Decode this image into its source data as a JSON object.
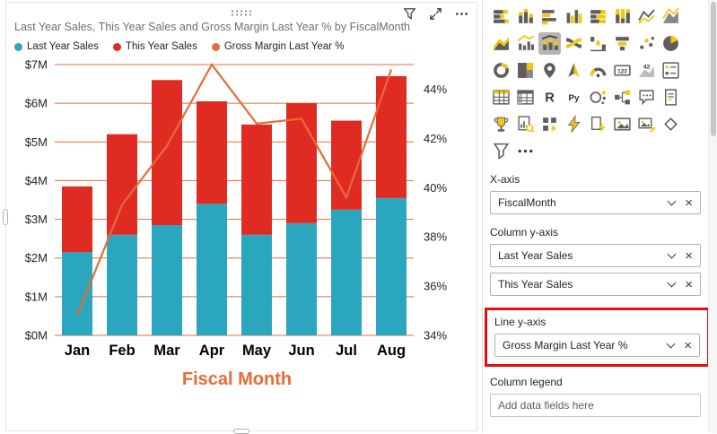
{
  "visual": {
    "title": "Last Year Sales, This Year Sales and Gross Margin Last Year % by FiscalMonth",
    "legend": [
      {
        "label": "Last Year Sales",
        "color": "#2BA6BF"
      },
      {
        "label": "This Year Sales",
        "color": "#E02B23"
      },
      {
        "label": "Gross Margin Last Year %",
        "color": "#E66C37"
      }
    ]
  },
  "chart_data": {
    "type": "combo",
    "subtype": "line and stacked column",
    "title": "Last Year Sales, This Year Sales and Gross Margin Last Year % by FiscalMonth",
    "x_axis_title": "Fiscal Month",
    "categories": [
      "Jan",
      "Feb",
      "Mar",
      "Apr",
      "May",
      "Jun",
      "Jul",
      "Aug"
    ],
    "series": [
      {
        "name": "Last Year Sales",
        "role": "column",
        "color": "#2BA6BF",
        "values_musd": [
          2.15,
          2.6,
          2.85,
          3.4,
          2.6,
          2.9,
          3.25,
          3.55
        ]
      },
      {
        "name": "This Year Sales",
        "role": "column",
        "color": "#E02B23",
        "values_musd": [
          1.7,
          2.6,
          3.75,
          2.65,
          2.85,
          3.1,
          2.3,
          3.15
        ]
      },
      {
        "name": "Gross Margin Last Year %",
        "role": "line",
        "color": "#E66C37",
        "values_pct": [
          34.8,
          39.3,
          41.7,
          45.0,
          42.6,
          42.8,
          39.6,
          44.8
        ]
      }
    ],
    "column_totals_musd": [
      3.85,
      5.2,
      6.6,
      6.05,
      5.45,
      6.0,
      5.55,
      6.7
    ],
    "left_axis": {
      "min": 0,
      "max": 7,
      "tick_labels": [
        "$0M",
        "$1M",
        "$2M",
        "$3M",
        "$4M",
        "$5M",
        "$6M",
        "$7M"
      ]
    },
    "right_axis": {
      "min": 34,
      "max": 45,
      "tick_values": [
        34,
        36,
        38,
        40,
        42,
        44
      ],
      "tick_labels": [
        "34%",
        "36%",
        "38%",
        "40%",
        "42%",
        "44%"
      ]
    },
    "gridlines": true,
    "gridline_color": "#E66C37",
    "legend_position": "top-left"
  },
  "viz_pane": {
    "icons": [
      {
        "name": "stacked-bar-chart",
        "kind": "hbars_stacked"
      },
      {
        "name": "stacked-column-chart",
        "kind": "vbars_stacked"
      },
      {
        "name": "clustered-bar-chart",
        "kind": "hbars"
      },
      {
        "name": "clustered-column-chart",
        "kind": "vbars"
      },
      {
        "name": "100-stacked-bar-chart",
        "kind": "hbars_full"
      },
      {
        "name": "100-stacked-column-chart",
        "kind": "vbars_full"
      },
      {
        "name": "line-chart",
        "kind": "line"
      },
      {
        "name": "area-chart",
        "kind": "area"
      },
      {
        "name": "stacked-area-chart",
        "kind": "area2"
      },
      {
        "name": "line-and-clustered-column-chart",
        "kind": "combo"
      },
      {
        "name": "line-and-stacked-column-chart",
        "kind": "combo_stacked",
        "selected": true
      },
      {
        "name": "ribbon-chart",
        "kind": "ribbon"
      },
      {
        "name": "waterfall-chart",
        "kind": "waterfall"
      },
      {
        "name": "funnel-chart",
        "kind": "funnel"
      },
      {
        "name": "scatter-chart",
        "kind": "scatter"
      },
      {
        "name": "pie-chart",
        "kind": "pie"
      },
      {
        "name": "donut-chart",
        "kind": "donut"
      },
      {
        "name": "treemap",
        "kind": "treemap"
      },
      {
        "name": "map",
        "kind": "pin"
      },
      {
        "name": "azure-map",
        "kind": "arrow"
      },
      {
        "name": "gauge",
        "kind": "gauge"
      },
      {
        "name": "card",
        "kind": "card"
      },
      {
        "name": "kpi",
        "kind": "kpi"
      },
      {
        "name": "slicer",
        "kind": "slicer"
      },
      {
        "name": "table",
        "kind": "table"
      },
      {
        "name": "matrix",
        "kind": "matrix"
      },
      {
        "name": "r-script-visual",
        "kind": "textR"
      },
      {
        "name": "python-visual",
        "kind": "textPy"
      },
      {
        "name": "key-influencers",
        "kind": "influencer"
      },
      {
        "name": "decomposition-tree",
        "kind": "decomp"
      },
      {
        "name": "q-and-a",
        "kind": "bubble"
      },
      {
        "name": "smart-narrative",
        "kind": "doc"
      },
      {
        "name": "metrics",
        "kind": "trophy"
      },
      {
        "name": "paginated-report",
        "kind": "pagereport"
      },
      {
        "name": "power-apps",
        "kind": "powerapps"
      },
      {
        "name": "power-automate",
        "kind": "bolt"
      },
      {
        "name": "scorecard",
        "kind": "boltdoc"
      },
      {
        "name": "arcgis-map",
        "kind": "image"
      },
      {
        "name": "image-visual",
        "kind": "image_edit"
      },
      {
        "name": "certified-visual",
        "kind": "diamond"
      },
      {
        "name": "funnel-visual",
        "kind": "funnel2"
      },
      {
        "name": "get-more-visuals",
        "kind": "ellipsis"
      }
    ],
    "sections": [
      {
        "label": "X-axis",
        "fields": [
          "FiscalMonth"
        ]
      },
      {
        "label": "Column y-axis",
        "fields": [
          "Last Year Sales",
          "This Year Sales"
        ]
      },
      {
        "label": "Line y-axis",
        "fields": [
          "Gross Margin Last Year %"
        ],
        "highlighted": true
      },
      {
        "label": "Column legend",
        "fields": [],
        "placeholder": "Add data fields here"
      }
    ]
  },
  "colors": {
    "teal": "#2BA6BF",
    "red": "#E02B23",
    "orange": "#E66C37",
    "highlight_red": "#E01010",
    "icon_gray": "#605E5C",
    "icon_yellow": "#F2C80F"
  }
}
